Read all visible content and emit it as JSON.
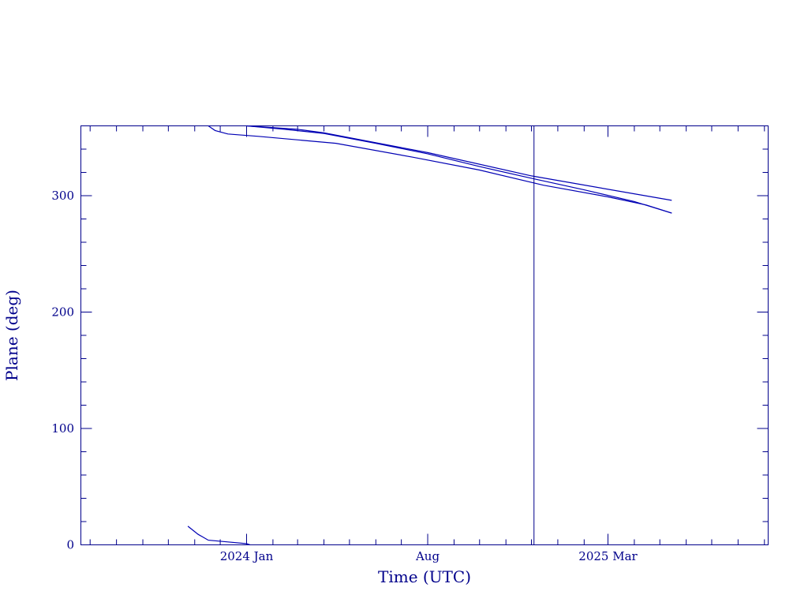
{
  "chart_data": {
    "type": "line",
    "xlabel": "Time (UTC)",
    "ylabel": "Plane (deg)",
    "ylim": [
      0,
      360
    ],
    "y_ticks": [
      0,
      100,
      200,
      300
    ],
    "x_tick_labels": [
      "2024 Jan",
      "Aug",
      "2025 Mar"
    ],
    "colors": {
      "axis": "#00008b",
      "line": "#0000b4"
    },
    "series": [
      {
        "points": [
          [
            "2023-10-24",
            16
          ],
          [
            "2023-11-05",
            9
          ],
          [
            "2023-11-17",
            4
          ],
          [
            "2023-12-10",
            2.5
          ],
          [
            "2024-01-01",
            1
          ],
          [
            "2024-01-05",
            0
          ]
        ]
      },
      {
        "points": [
          [
            "2023-11-17",
            360
          ],
          [
            "2023-11-25",
            356
          ],
          [
            "2023-12-10",
            353
          ],
          [
            "2024-01-15",
            351
          ],
          [
            "2024-04-15",
            345
          ],
          [
            "2024-07-15",
            333
          ],
          [
            "2024-10-01",
            322
          ],
          [
            "2024-12-15",
            309
          ],
          [
            "2025-03-01",
            299
          ],
          [
            "2025-04-15",
            292
          ],
          [
            "2025-05-15",
            285
          ]
        ]
      },
      {
        "points": [
          [
            "2024-01-01",
            360
          ],
          [
            "2024-02-15",
            357
          ],
          [
            "2024-04-01",
            353.5
          ],
          [
            "2024-06-01",
            345
          ],
          [
            "2024-08-01",
            336
          ],
          [
            "2024-10-01",
            325
          ],
          [
            "2024-12-01",
            315
          ],
          [
            "2025-02-01",
            305
          ],
          [
            "2025-04-01",
            295
          ],
          [
            "2025-05-15",
            285
          ]
        ]
      },
      {
        "points": [
          [
            "2024-01-01",
            360
          ],
          [
            "2024-03-01",
            357
          ],
          [
            "2024-04-01",
            354
          ],
          [
            "2024-08-01",
            337
          ],
          [
            "2024-12-01",
            317
          ],
          [
            "2025-05-15",
            296
          ]
        ]
      }
    ]
  },
  "annotations": {
    "vline_date": "2024-12-04"
  }
}
